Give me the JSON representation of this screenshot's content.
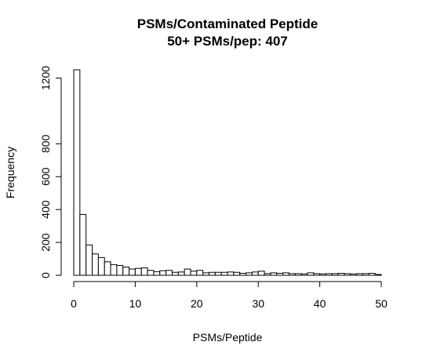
{
  "chart_data": {
    "type": "bar",
    "title": "PSMs/Contaminated Peptide",
    "subtitle": "50+ PSMs/pep: 407",
    "xlabel": "PSMs/Peptide",
    "ylabel": "Frequency",
    "xlim": [
      0,
      50
    ],
    "ylim": [
      0,
      1250
    ],
    "x_ticks": [
      0,
      10,
      20,
      30,
      40,
      50
    ],
    "y_ticks": [
      0,
      200,
      400,
      600,
      800,
      1200
    ],
    "bin_width": 1,
    "bin_start": 0,
    "values": [
      1250,
      370,
      185,
      130,
      108,
      82,
      65,
      60,
      50,
      38,
      42,
      45,
      30,
      22,
      28,
      30,
      18,
      20,
      38,
      25,
      30,
      15,
      18,
      18,
      18,
      20,
      18,
      12,
      15,
      20,
      25,
      10,
      15,
      12,
      15,
      10,
      10,
      8,
      15,
      10,
      8,
      10,
      10,
      12,
      10,
      8,
      10,
      10,
      12,
      5
    ]
  }
}
